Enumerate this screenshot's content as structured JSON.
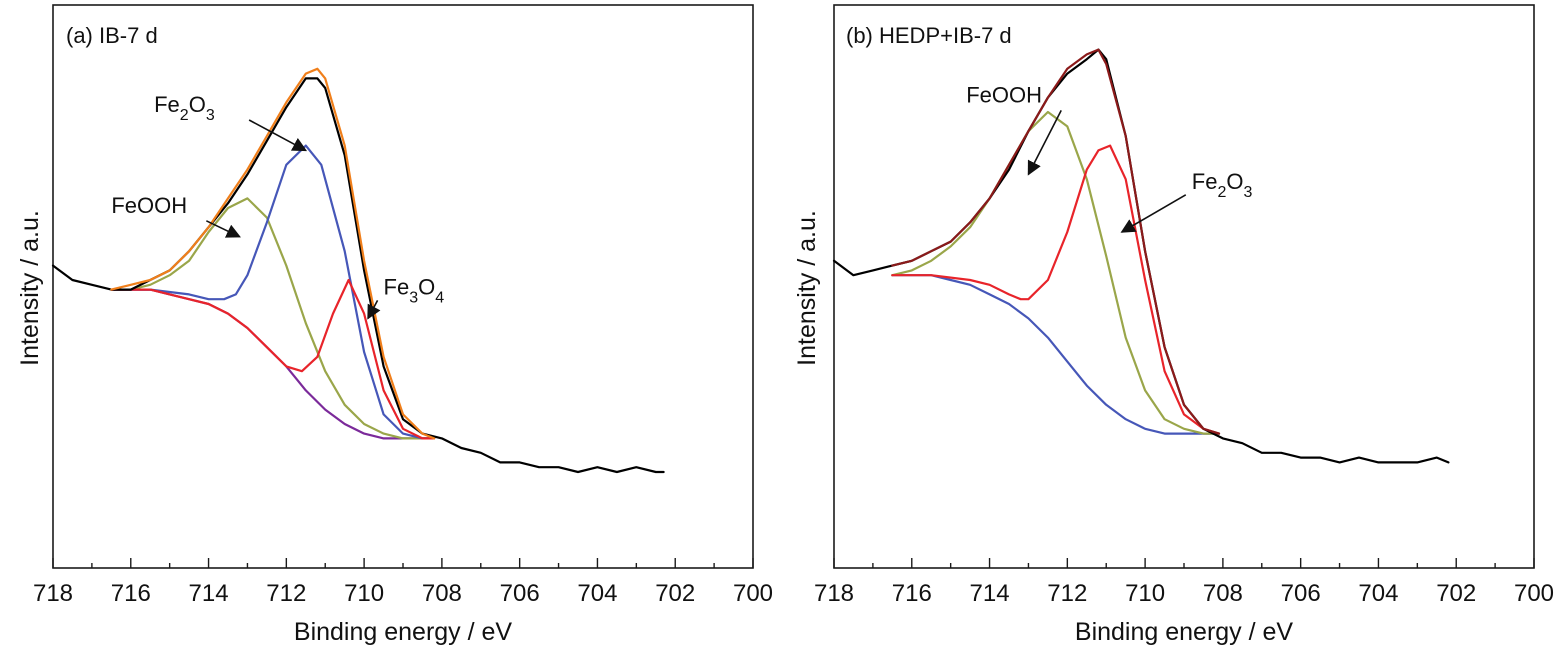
{
  "chart_data": [
    {
      "type": "line",
      "title": "(a) IB-7 d",
      "xlabel": "Binding energy / eV",
      "ylabel": "Intensity / a.u.",
      "xlim": [
        718,
        700
      ],
      "x_reversed": true,
      "yticks_shown": false,
      "xticks": [
        "718",
        "716",
        "714",
        "712",
        "710",
        "708",
        "706",
        "704",
        "702",
        "700"
      ],
      "ylim": [
        0,
        1
      ],
      "colors": {
        "raw": "#000000",
        "fit": "#f07f1b",
        "background": "#7b2a9a",
        "FeOOH": "#9aa64a",
        "Fe2O3": "#4657b8",
        "Fe3O4": "#e8242a"
      },
      "series": [
        {
          "name": "raw",
          "x": [
            718,
            717.5,
            717,
            716.5,
            716,
            715.5,
            715,
            714.5,
            714,
            713.5,
            713,
            712.5,
            712,
            711.5,
            711.2,
            711,
            710.5,
            710,
            709.5,
            709,
            708.5,
            708,
            707.5,
            707,
            706.5,
            706,
            705.5,
            705,
            704.5,
            704,
            703.5,
            703,
            702.5,
            702.3
          ],
          "y": [
            0.53,
            0.5,
            0.49,
            0.48,
            0.48,
            0.5,
            0.52,
            0.56,
            0.61,
            0.66,
            0.72,
            0.79,
            0.86,
            0.92,
            0.92,
            0.9,
            0.76,
            0.52,
            0.32,
            0.21,
            0.18,
            0.17,
            0.15,
            0.14,
            0.12,
            0.12,
            0.11,
            0.11,
            0.1,
            0.11,
            0.1,
            0.11,
            0.1,
            0.1
          ]
        },
        {
          "name": "fit",
          "x": [
            716.5,
            716,
            715.5,
            715,
            714.5,
            714,
            713.5,
            713,
            712.5,
            712,
            711.5,
            711.2,
            711,
            710.5,
            710,
            709.5,
            709,
            708.5,
            708.2
          ],
          "y": [
            0.48,
            0.49,
            0.5,
            0.52,
            0.56,
            0.61,
            0.67,
            0.73,
            0.8,
            0.87,
            0.93,
            0.94,
            0.92,
            0.78,
            0.54,
            0.34,
            0.22,
            0.18,
            0.17
          ]
        },
        {
          "name": "background",
          "x": [
            716.5,
            716,
            715.5,
            715,
            714.5,
            714,
            713.5,
            713,
            712.5,
            712,
            711.5,
            711,
            710.5,
            710,
            709.5,
            709,
            708.5,
            708.2
          ],
          "y": [
            0.48,
            0.48,
            0.48,
            0.47,
            0.46,
            0.45,
            0.43,
            0.4,
            0.36,
            0.32,
            0.27,
            0.23,
            0.2,
            0.18,
            0.17,
            0.17,
            0.17,
            0.17
          ]
        },
        {
          "name": "FeOOH",
          "x": [
            716.5,
            716,
            715.5,
            715,
            714.5,
            714,
            713.5,
            713,
            712.5,
            712,
            711.5,
            711,
            710.5,
            710,
            709.5,
            709,
            708.5,
            708.2
          ],
          "y": [
            0.48,
            0.48,
            0.49,
            0.51,
            0.54,
            0.6,
            0.65,
            0.67,
            0.63,
            0.53,
            0.41,
            0.31,
            0.24,
            0.2,
            0.18,
            0.17,
            0.17,
            0.17
          ]
        },
        {
          "name": "Fe2O3",
          "x": [
            716.5,
            715.5,
            714.5,
            714,
            713.6,
            713.3,
            713,
            712.5,
            712,
            711.5,
            711.1,
            710.5,
            710,
            709.5,
            709,
            708.5,
            708.2
          ],
          "y": [
            0.48,
            0.48,
            0.47,
            0.46,
            0.46,
            0.47,
            0.51,
            0.62,
            0.74,
            0.78,
            0.74,
            0.56,
            0.35,
            0.22,
            0.18,
            0.17,
            0.17
          ]
        },
        {
          "name": "Fe3O4",
          "x": [
            716.5,
            715.5,
            714.5,
            714,
            713.5,
            713,
            712.5,
            712,
            711.6,
            711.2,
            710.8,
            710.4,
            710,
            709.5,
            709,
            708.5,
            708.2
          ],
          "y": [
            0.48,
            0.48,
            0.46,
            0.45,
            0.43,
            0.4,
            0.36,
            0.32,
            0.31,
            0.34,
            0.43,
            0.5,
            0.43,
            0.27,
            0.19,
            0.17,
            0.17
          ]
        }
      ],
      "annotations": [
        {
          "label": "Fe",
          "sub": "2",
          "label2": "O",
          "sub2": "3",
          "tx": 711.5,
          "ty": 0.77,
          "text_x": 715.4,
          "text_y": 0.85,
          "name": "Fe2O3"
        },
        {
          "label": "FeOOH",
          "tx": 713.2,
          "ty": 0.59,
          "text_x": 716.5,
          "text_y": 0.64,
          "name": "FeOOH"
        },
        {
          "label": "Fe",
          "sub": "3",
          "label2": "O",
          "sub2": "4",
          "tx": 709.9,
          "ty": 0.42,
          "text_x": 709.5,
          "text_y": 0.47,
          "name": "Fe3O4"
        }
      ]
    },
    {
      "type": "line",
      "title": "(b) HEDP+IB-7 d",
      "xlabel": "Binding energy / eV",
      "ylabel": "Intensity / a.u.",
      "xlim": [
        718,
        700
      ],
      "x_reversed": true,
      "yticks_shown": false,
      "xticks": [
        "718",
        "716",
        "714",
        "712",
        "710",
        "708",
        "706",
        "704",
        "702",
        "700"
      ],
      "ylim": [
        0,
        1
      ],
      "colors": {
        "raw": "#000000",
        "fit": "#8b1a1a",
        "background": "#4657b8",
        "FeOOH": "#9aa64a",
        "Fe2O3": "#e8242a"
      },
      "series": [
        {
          "name": "raw",
          "x": [
            718,
            717.5,
            717,
            716.5,
            716,
            715.5,
            715,
            714.5,
            714,
            713.5,
            713,
            712.5,
            712,
            711.5,
            711.2,
            711,
            710.5,
            710,
            709.5,
            709,
            708.5,
            708,
            707.5,
            707,
            706.5,
            706,
            705.5,
            705,
            704.5,
            704,
            703.5,
            703,
            702.5,
            702.2
          ],
          "y": [
            0.54,
            0.51,
            0.52,
            0.53,
            0.54,
            0.56,
            0.58,
            0.62,
            0.67,
            0.73,
            0.81,
            0.88,
            0.93,
            0.96,
            0.98,
            0.96,
            0.8,
            0.56,
            0.36,
            0.24,
            0.19,
            0.17,
            0.16,
            0.14,
            0.14,
            0.13,
            0.13,
            0.12,
            0.13,
            0.12,
            0.12,
            0.12,
            0.13,
            0.12
          ]
        },
        {
          "name": "fit",
          "x": [
            716.5,
            716,
            715.5,
            715,
            714.5,
            714,
            713.5,
            713,
            712.5,
            712,
            711.5,
            711.2,
            711,
            710.5,
            710,
            709.5,
            709,
            708.5,
            708.1
          ],
          "y": [
            0.53,
            0.54,
            0.56,
            0.58,
            0.62,
            0.67,
            0.74,
            0.81,
            0.88,
            0.94,
            0.97,
            0.98,
            0.95,
            0.8,
            0.56,
            0.36,
            0.24,
            0.19,
            0.18
          ]
        },
        {
          "name": "background",
          "x": [
            716.5,
            716,
            715.5,
            715,
            714.5,
            714,
            713.5,
            713,
            712.5,
            712,
            711.5,
            711,
            710.5,
            710,
            709.5,
            709,
            708.5,
            708.1
          ],
          "y": [
            0.51,
            0.51,
            0.51,
            0.5,
            0.49,
            0.47,
            0.45,
            0.42,
            0.38,
            0.33,
            0.28,
            0.24,
            0.21,
            0.19,
            0.18,
            0.18,
            0.18,
            0.18
          ]
        },
        {
          "name": "FeOOH",
          "x": [
            716.5,
            716,
            715.5,
            715,
            714.5,
            714,
            713.5,
            713,
            712.5,
            712,
            711.5,
            711,
            710.5,
            710,
            709.5,
            709,
            708.5,
            708.1
          ],
          "y": [
            0.51,
            0.52,
            0.54,
            0.57,
            0.61,
            0.67,
            0.74,
            0.81,
            0.85,
            0.82,
            0.71,
            0.55,
            0.38,
            0.27,
            0.21,
            0.19,
            0.18,
            0.18
          ]
        },
        {
          "name": "Fe2O3",
          "x": [
            716.5,
            715.5,
            714.5,
            714,
            713.5,
            713.2,
            713,
            712.5,
            712,
            711.5,
            711.2,
            710.9,
            710.5,
            710,
            709.5,
            709,
            708.5,
            708.1
          ],
          "y": [
            0.51,
            0.51,
            0.5,
            0.49,
            0.47,
            0.46,
            0.46,
            0.5,
            0.6,
            0.73,
            0.77,
            0.78,
            0.71,
            0.5,
            0.31,
            0.22,
            0.19,
            0.18
          ]
        }
      ],
      "annotations": [
        {
          "label": "FeOOH",
          "tx": 713.0,
          "ty": 0.72,
          "text_x": 714.6,
          "text_y": 0.87,
          "name": "FeOOH"
        },
        {
          "label": "Fe",
          "sub": "2",
          "label2": "O",
          "sub2": "3",
          "tx": 710.6,
          "ty": 0.6,
          "text_x": 708.8,
          "text_y": 0.69,
          "name": "Fe2O3"
        }
      ]
    }
  ]
}
